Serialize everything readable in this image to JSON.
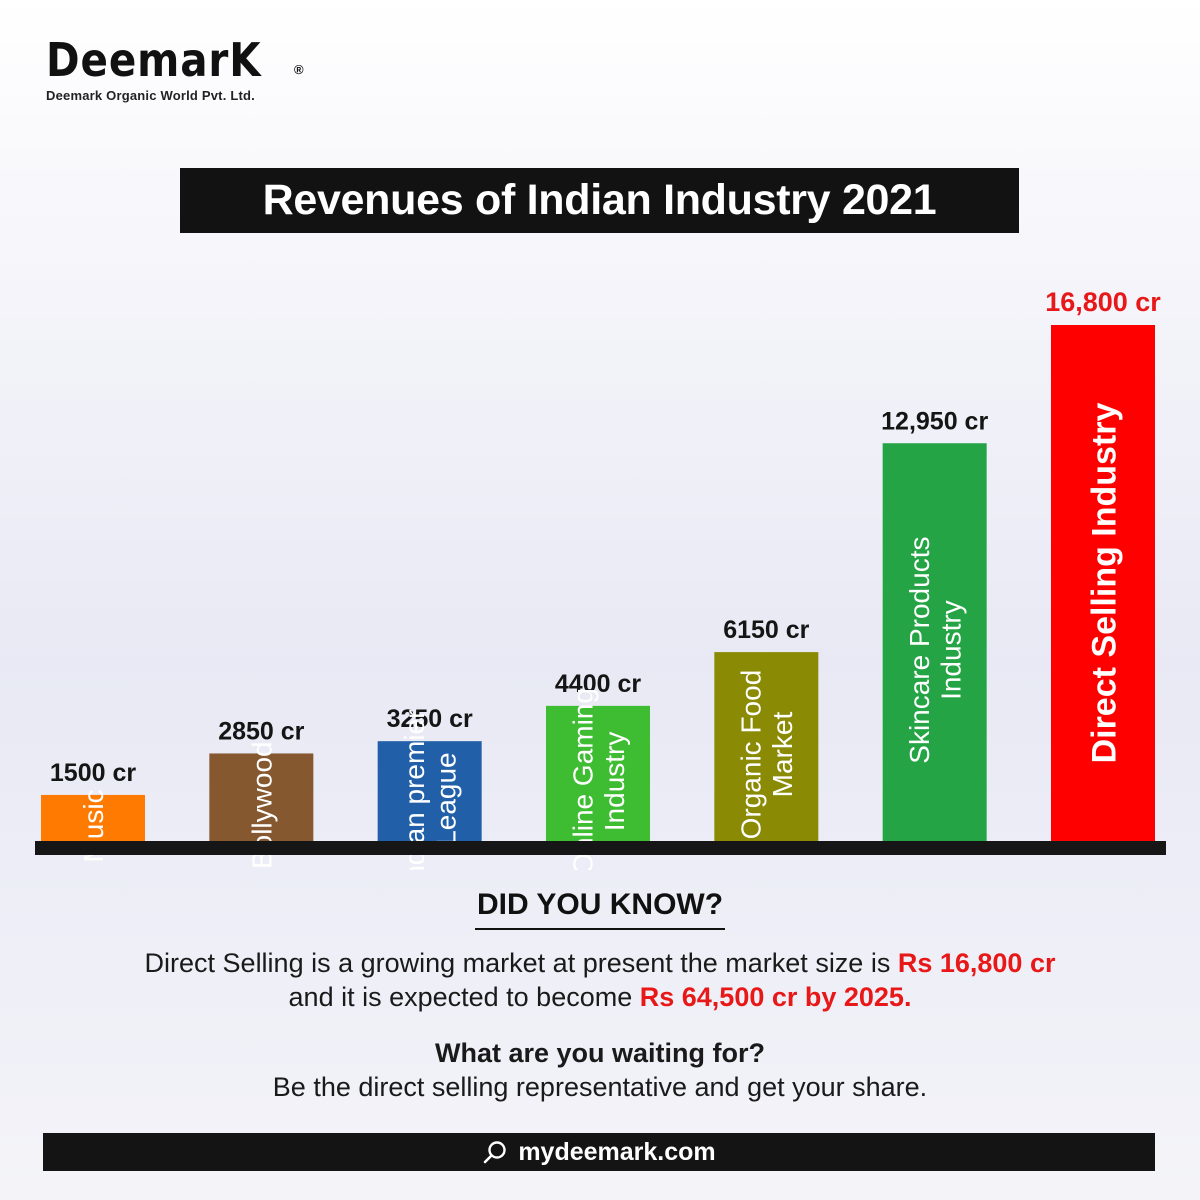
{
  "brand": {
    "logo_text": "DeemarK",
    "registered_mark": "®",
    "company": "Deemark Organic World Pvt. Ltd."
  },
  "chart_data": {
    "type": "bar",
    "title": "Revenues of Indian Industry 2021",
    "categories": [
      "Music",
      "Bollywood",
      "Indian premier League",
      "Online Gaming Industry",
      "Organic Food Market",
      "Skincare Products Industry",
      "Direct Selling Industry"
    ],
    "category_lines": [
      [
        "Music"
      ],
      [
        "Bollywood"
      ],
      [
        "Indian premier",
        "League"
      ],
      [
        "Online Gaming",
        "Industry"
      ],
      [
        "Organic Food",
        "Market"
      ],
      [
        "Skincare Products",
        "Industry"
      ],
      [
        "Direct Selling Industry"
      ]
    ],
    "values": [
      1500,
      2850,
      3250,
      4400,
      6150,
      12950,
      16800
    ],
    "value_labels": [
      "1500 cr",
      "2850 cr",
      "3250 cr",
      "4400 cr",
      "6150 cr",
      "12,950 cr",
      "16,800 cr"
    ],
    "colors": [
      "#ff7a00",
      "#86582f",
      "#2160a8",
      "#3fbd32",
      "#8a8a05",
      "#25a446",
      "#ff0000"
    ],
    "highlight_index": 6,
    "highlight_color": "#e81818",
    "baseline_color": "#161616",
    "xlabel": "",
    "ylabel": ""
  },
  "did_you_know": {
    "heading": "DID YOU KNOW?",
    "line1_text": "Direct Selling is a growing market at present the market size is ",
    "line1_highlight": "Rs 16,800 cr",
    "line2_text": "and it is expected to become ",
    "line2_highlight": "Rs 64,500 cr by 2025."
  },
  "cta": {
    "question": "What are you waiting for?",
    "message": "Be the direct selling representative and get your share."
  },
  "footer": {
    "icon": "search-icon",
    "website": "mydeemark.com"
  }
}
